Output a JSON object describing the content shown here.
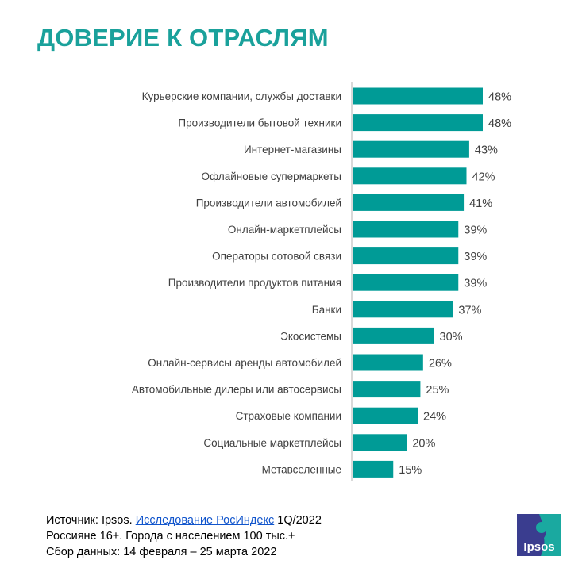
{
  "chart_data": {
    "type": "bar",
    "orientation": "horizontal",
    "title": "ДОВЕРИЕ К ОТРАСЛЯМ",
    "categories": [
      "Курьерские компании, службы доставки",
      "Производители бытовой техники",
      "Интернет-магазины",
      "Офлайновые супермаркеты",
      "Производители автомобилей",
      "Онлайн-маркетплейсы",
      "Операторы сотовой связи",
      "Производители продуктов питания",
      "Банки",
      "Экосистемы",
      "Онлайн-сервисы аренды автомобилей",
      "Автомобильные дилеры или автосервисы",
      "Страховые компании",
      "Социальные маркетплейсы",
      "Метавселенные"
    ],
    "values": [
      48,
      48,
      43,
      42,
      41,
      39,
      39,
      39,
      37,
      30,
      26,
      25,
      24,
      20,
      15
    ],
    "value_labels": [
      "48%",
      "48%",
      "43%",
      "42%",
      "41%",
      "39%",
      "39%",
      "39%",
      "37%",
      "30%",
      "26%",
      "25%",
      "24%",
      "20%",
      "15%"
    ],
    "xlim": [
      0,
      50
    ],
    "grid": false,
    "bar_color": "#009b96"
  },
  "footer": {
    "source_prefix": "Источник: Ipsos.",
    "source_link": "Исследование РосИндекс",
    "source_suffix": "1Q/2022",
    "line2": "Россияне 16+. Города с населением 100 тыс.+",
    "line3": "Сбор данных: 14 февраля – 25 марта 2022"
  },
  "logo": {
    "text": "Ipsos",
    "color1": "#3a3d8f",
    "color2": "#1aa9a0"
  }
}
